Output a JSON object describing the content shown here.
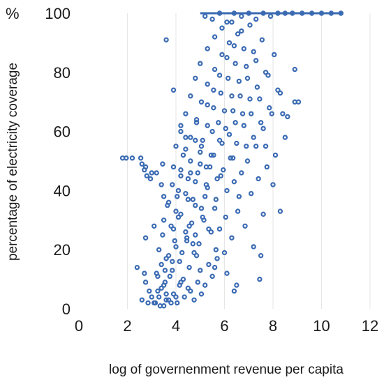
{
  "chart_data": {
    "type": "scatter",
    "title": "",
    "xlabel": "log of governenment revenue per capita",
    "ylabel": "percentage of electricity coverage",
    "y_unit": "%",
    "xlim": [
      0,
      12
    ],
    "ylim": [
      0,
      100
    ],
    "x_ticks": [
      "0",
      "2",
      "4",
      "6",
      "8",
      "10",
      "12"
    ],
    "y_ticks": [
      "100",
      "80",
      "60",
      "40",
      "20",
      "0"
    ],
    "grid": "vertical-gridlines",
    "legend": "none",
    "marker": "open-circle",
    "color": "#3b6bb3",
    "series": [
      {
        "x": [
          1.8,
          1.95,
          2.2,
          2.55,
          2.6,
          2.75,
          2.8,
          2.7,
          3.0,
          2.95,
          3.2,
          3.45,
          3.5,
          2.4,
          2.7,
          2.75,
          2.6,
          2.85,
          2.9,
          2.75,
          3.1,
          3.4,
          3.0,
          3.1,
          3.25,
          3.35,
          3.5,
          3.6,
          3.75,
          3.9,
          4.05,
          4.2,
          4.35,
          4.5,
          3.2,
          3.4,
          3.55,
          3.7,
          3.85,
          4.0,
          4.15,
          4.3,
          4.6,
          4.75,
          3.3,
          3.45,
          3.6,
          3.8,
          3.95,
          4.1,
          4.25,
          4.4,
          4.55,
          4.7,
          4.9,
          5.05,
          3.5,
          3.65,
          3.9,
          4.05,
          4.2,
          4.45,
          4.65,
          4.85,
          5.0,
          5.2,
          3.7,
          3.85,
          4.0,
          4.2,
          4.4,
          4.55,
          4.8,
          4.95,
          5.15,
          5.35,
          5.5,
          3.9,
          4.1,
          4.3,
          4.5,
          4.7,
          4.9,
          5.1,
          5.3,
          5.45,
          5.65,
          4.0,
          4.2,
          4.4,
          4.6,
          4.8,
          5.0,
          5.2,
          5.4,
          5.6,
          5.8,
          6.0,
          4.2,
          4.4,
          4.6,
          4.8,
          5.0,
          5.25,
          5.45,
          5.65,
          5.85,
          6.05,
          6.3,
          4.4,
          4.6,
          4.85,
          5.05,
          5.25,
          5.5,
          5.7,
          5.9,
          6.1,
          6.35,
          6.55,
          4.6,
          4.85,
          5.1,
          5.3,
          5.55,
          5.75,
          5.95,
          6.2,
          6.4,
          6.6,
          6.85,
          4.8,
          5.05,
          5.3,
          5.55,
          5.8,
          6.0,
          6.25,
          6.45,
          6.7,
          6.9,
          7.1,
          5.0,
          5.3,
          5.55,
          5.8,
          6.05,
          6.3,
          6.5,
          6.75,
          6.95,
          7.2,
          7.4,
          5.3,
          5.6,
          5.85,
          6.1,
          6.35,
          6.6,
          6.8,
          7.05,
          7.3,
          7.5,
          7.75,
          5.6,
          5.9,
          6.15,
          6.4,
          6.65,
          6.9,
          7.1,
          7.35,
          7.6,
          7.85,
          8.1,
          5.9,
          6.2,
          6.45,
          6.7,
          6.95,
          7.2,
          7.45,
          7.7,
          7.95,
          8.2,
          8.5,
          6.3,
          6.55,
          6.8,
          7.05,
          7.3,
          7.55,
          7.8,
          8.05,
          8.3,
          8.6,
          8.9,
          5.2,
          5.5,
          5.8,
          6.1,
          6.4,
          6.7,
          7.0,
          7.3,
          7.6,
          7.9,
          8.2,
          8.5,
          8.8,
          9.2,
          9.6,
          10.0,
          10.4,
          10.8,
          3.6,
          3.9,
          4.2,
          4.5,
          4.8,
          5.6,
          6.4,
          7.2,
          7.6,
          7.5,
          7.45,
          7.7,
          8.4,
          8.9,
          9.05,
          8.0,
          8.3,
          3.15,
          3.3,
          3.5,
          3.7,
          3.4,
          3.6,
          3.8,
          4.0,
          3.25,
          3.55,
          3.85,
          4.15,
          4.45,
          4.75,
          5.05,
          5.35,
          5.7,
          6.1,
          6.5
        ],
        "y": [
          51,
          51,
          51,
          51,
          49,
          48,
          45,
          47,
          46,
          44,
          46,
          49,
          38,
          14,
          12,
          9,
          3,
          2,
          6,
          24,
          28,
          42,
          4,
          2,
          6,
          1,
          8,
          3,
          11,
          5,
          2,
          9,
          4,
          7,
          12,
          15,
          9,
          18,
          13,
          21,
          16,
          10,
          6,
          3,
          20,
          25,
          17,
          28,
          23,
          31,
          19,
          26,
          14,
          22,
          9,
          5,
          30,
          35,
          27,
          38,
          32,
          24,
          29,
          18,
          13,
          8,
          36,
          42,
          33,
          45,
          39,
          28,
          35,
          22,
          30,
          15,
          11,
          48,
          40,
          52,
          44,
          37,
          46,
          31,
          41,
          26,
          20,
          55,
          47,
          58,
          50,
          43,
          53,
          38,
          48,
          34,
          27,
          19,
          60,
          54,
          46,
          57,
          49,
          42,
          52,
          37,
          45,
          31,
          24,
          66,
          58,
          63,
          55,
          48,
          60,
          44,
          56,
          40,
          51,
          33,
          72,
          64,
          57,
          69,
          52,
          63,
          47,
          59,
          43,
          38,
          28,
          78,
          70,
          62,
          74,
          57,
          67,
          51,
          63,
          46,
          55,
          39,
          83,
          76,
          68,
          79,
          61,
          72,
          56,
          66,
          50,
          58,
          44,
          88,
          81,
          73,
          85,
          67,
          77,
          62,
          71,
          55,
          63,
          48,
          92,
          86,
          78,
          89,
          72,
          82,
          66,
          75,
          61,
          68,
          52,
          95,
          90,
          83,
          94,
          78,
          87,
          71,
          80,
          66,
          74,
          58,
          97,
          93,
          88,
          96,
          84,
          91,
          79,
          86,
          73,
          65,
          70,
          99,
          98,
          100,
          97,
          100,
          99,
          100,
          98,
          100,
          99,
          100,
          100,
          100,
          100,
          100,
          100,
          100,
          100,
          91,
          74,
          62,
          37,
          25,
          14,
          6,
          21,
          32,
          18,
          10,
          55,
          66,
          81,
          70,
          42,
          33,
          2,
          4,
          1,
          3,
          7,
          5,
          2,
          4,
          11,
          13,
          16,
          8,
          23,
          19,
          34,
          27,
          17,
          12,
          8
        ]
      }
    ]
  }
}
